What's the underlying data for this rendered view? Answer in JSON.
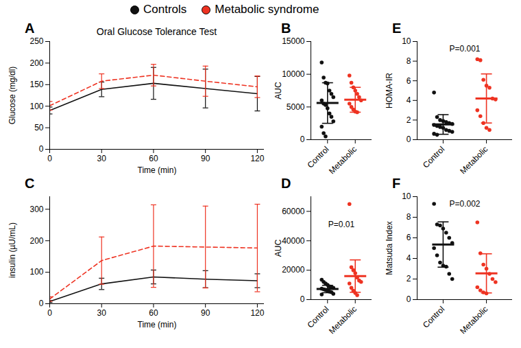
{
  "chart_data": [
    {
      "type": "line",
      "panel_label": "A",
      "title": "Oral Glucose Tolerance Test",
      "x_label": "Time (min)",
      "y_label": "Glucose (mg/dl)",
      "x": [
        0,
        30,
        60,
        90,
        120
      ],
      "xlim": [
        0,
        124
      ],
      "xticks": [
        0,
        30,
        60,
        90,
        120
      ],
      "ylim": [
        0,
        250
      ],
      "yticks": [
        0,
        50,
        100,
        150,
        200,
        250
      ],
      "legend": "top",
      "series": [
        {
          "name": "Controls",
          "color": "#111111",
          "line_style": "solid",
          "values": [
            90,
            139,
            153,
            141,
            129
          ],
          "error": [
            8,
            17,
            37,
            45,
            40
          ]
        },
        {
          "name": "Metabolic syndrome",
          "color": "#ee3322",
          "line_style": "dashed",
          "values": [
            101,
            158,
            172,
            158,
            145
          ],
          "error": [
            10,
            17,
            25,
            35,
            25
          ]
        }
      ]
    },
    {
      "type": "dot_plot",
      "panel_label": "B",
      "y_label": "AUC",
      "categories": [
        "Control",
        "Metabolic"
      ],
      "colors": [
        "#111111",
        "#ee3322"
      ],
      "ylim": [
        0,
        15000
      ],
      "yticks": [
        0,
        5000,
        10000,
        15000
      ],
      "points": [
        [
          11800,
          9500,
          8700,
          8600,
          7500,
          7000,
          6500,
          6000,
          5500,
          5300,
          4800,
          4000,
          3500,
          2800,
          2000,
          1000,
          500
        ],
        [
          9800,
          8700,
          8000,
          7500,
          7000,
          6500,
          6000,
          5500,
          5000,
          4600,
          4300,
          4200
        ]
      ],
      "mean": [
        5600,
        6100
      ],
      "sd": [
        3100,
        1900
      ],
      "annotations": []
    },
    {
      "type": "line",
      "panel_label": "C",
      "x_label": "Time (min)",
      "y_label": "insulin (µU/mL)",
      "x": [
        0,
        30,
        60,
        90,
        120
      ],
      "xlim": [
        0,
        124
      ],
      "xticks": [
        0,
        30,
        60,
        90,
        120
      ],
      "ylim": [
        0,
        340
      ],
      "yticks": [
        0,
        100,
        200,
        300
      ],
      "series": [
        {
          "name": "Controls",
          "color": "#111111",
          "line_style": "solid",
          "values": [
            7,
            63,
            85,
            78,
            73
          ],
          "error": [
            3,
            18,
            22,
            27,
            22
          ]
        },
        {
          "name": "Metabolic syndrome",
          "color": "#ee3322",
          "line_style": "dashed",
          "values": [
            15,
            137,
            183,
            180,
            177
          ],
          "error": [
            7,
            75,
            131,
            130,
            139
          ]
        }
      ]
    },
    {
      "type": "dot_plot",
      "panel_label": "D",
      "y_label": "AUC",
      "categories": [
        "Control",
        "Metabolic"
      ],
      "colors": [
        "#111111",
        "#ee3322"
      ],
      "ylim": [
        0,
        70000
      ],
      "yticks": [
        0,
        20000,
        40000,
        60000
      ],
      "points": [
        [
          13500,
          12000,
          11000,
          10000,
          9000,
          8500,
          8000,
          7500,
          7000,
          6500,
          6000,
          5500,
          5000,
          4000,
          3500
        ],
        [
          65000,
          22000,
          20000,
          18000,
          15000,
          13000,
          12000,
          11000,
          8000,
          6000,
          4500,
          3000
        ]
      ],
      "mean": [
        7200,
        16000
      ],
      "sd": [
        2500,
        11000
      ],
      "annotations": [
        "P=0.01"
      ]
    },
    {
      "type": "dot_plot",
      "panel_label": "E",
      "y_label": "HOMA-IR",
      "categories": [
        "Control",
        "Metabolic"
      ],
      "colors": [
        "#111111",
        "#ee3322"
      ],
      "ylim": [
        0,
        10
      ],
      "yticks": [
        0,
        2,
        4,
        6,
        8,
        10
      ],
      "points": [
        [
          4.8,
          2.3,
          2.0,
          1.9,
          1.8,
          1.7,
          1.6,
          1.5,
          1.4,
          1.3,
          1.2,
          1.0,
          0.9,
          0.8,
          0.6,
          0.5
        ],
        [
          8.2,
          8.1,
          6.1,
          5.5,
          5.3,
          4.2,
          4.1,
          3.0,
          2.4,
          1.7,
          1.2,
          1.0
        ]
      ],
      "mean": [
        1.55,
        4.2
      ],
      "sd": [
        1.0,
        2.5
      ],
      "annotations": [
        "P=0.001"
      ]
    },
    {
      "type": "dot_plot",
      "panel_label": "F",
      "y_label": "Matsuda Index",
      "categories": [
        "Control",
        "Metabolic"
      ],
      "colors": [
        "#111111",
        "#ee3322"
      ],
      "ylim": [
        0,
        10
      ],
      "yticks": [
        0,
        2,
        4,
        6,
        8,
        10
      ],
      "points": [
        [
          9.3,
          7.3,
          7.2,
          6.9,
          6.5,
          6.0,
          5.5,
          5.0,
          4.3,
          3.6,
          3.3,
          3.2,
          2.5,
          2.0
        ],
        [
          7.5,
          4.5,
          3.4,
          3.0,
          2.5,
          2.0,
          1.7,
          1.2,
          0.9,
          0.7,
          0.6
        ]
      ],
      "mean": [
        5.35,
        2.55
      ],
      "sd": [
        2.2,
        1.9
      ],
      "annotations": [
        "P=0.002"
      ]
    }
  ]
}
